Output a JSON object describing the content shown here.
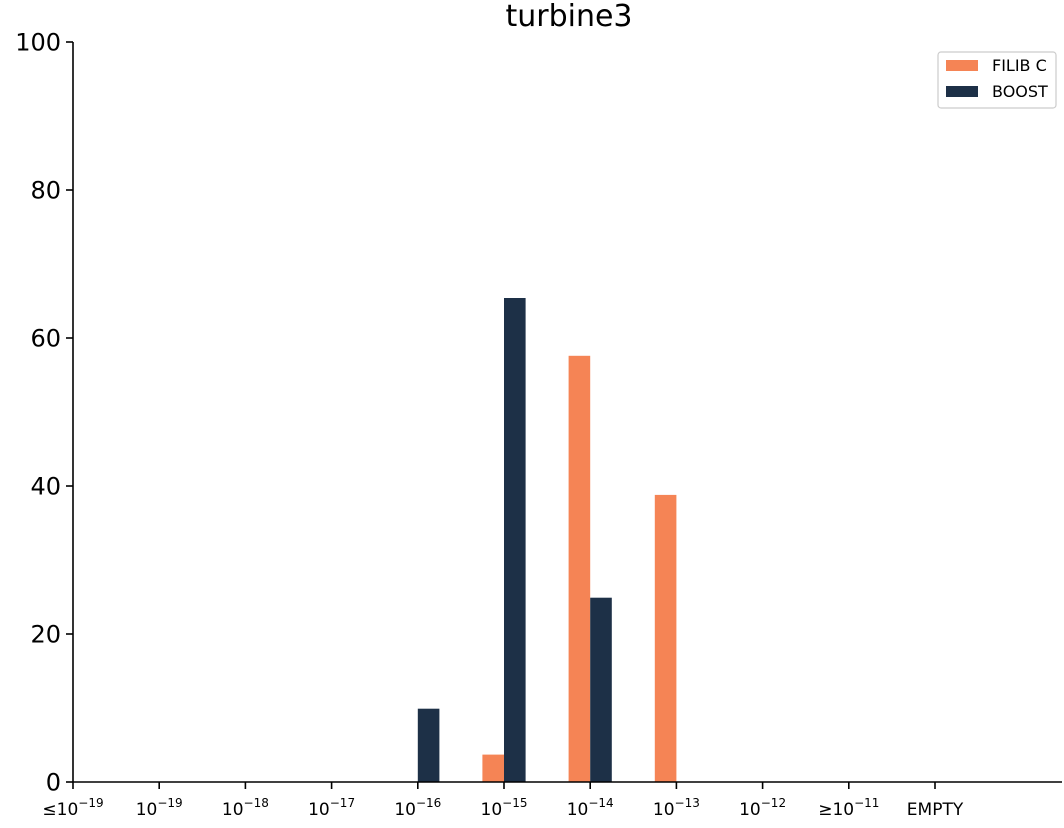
{
  "chart_data": {
    "type": "bar",
    "title": "turbine3",
    "xlabel": "",
    "ylabel": "",
    "ylim": [
      0,
      100
    ],
    "yticks": [
      0,
      20,
      40,
      60,
      80,
      100
    ],
    "categories": [
      {
        "prefix": "≤",
        "base": "10",
        "exp": "−19"
      },
      {
        "prefix": "",
        "base": "10",
        "exp": "−19"
      },
      {
        "prefix": "",
        "base": "10",
        "exp": "−18"
      },
      {
        "prefix": "",
        "base": "10",
        "exp": "−17"
      },
      {
        "prefix": "",
        "base": "10",
        "exp": "−16"
      },
      {
        "prefix": "",
        "base": "10",
        "exp": "−15"
      },
      {
        "prefix": "",
        "base": "10",
        "exp": "−14"
      },
      {
        "prefix": "",
        "base": "10",
        "exp": "−13"
      },
      {
        "prefix": "",
        "base": "10",
        "exp": "−12"
      },
      {
        "prefix": "≥",
        "base": "10",
        "exp": "−11"
      },
      {
        "prefix": "",
        "base": "EMPTY",
        "exp": ""
      }
    ],
    "series": [
      {
        "name": "FILIB C",
        "color": "#f58455",
        "values": [
          0,
          0,
          0,
          0,
          0,
          3.7,
          57.6,
          38.8,
          0,
          0,
          0
        ]
      },
      {
        "name": "BOOST",
        "color": "#1d3047",
        "values": [
          0,
          0,
          0,
          0,
          9.9,
          65.4,
          24.9,
          0,
          0,
          0,
          0
        ]
      }
    ],
    "grid": false,
    "legend_position": "top-right"
  }
}
